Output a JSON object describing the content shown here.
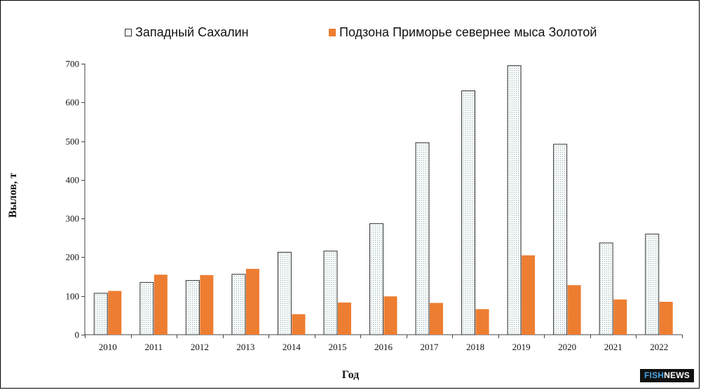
{
  "logo": {
    "part1": "FISH",
    "part2": "NEWS"
  },
  "chart_data": {
    "type": "bar",
    "title": "",
    "xlabel": "Год",
    "ylabel": "Вылов, т",
    "ylim": [
      0,
      700
    ],
    "yticks": [
      0,
      100,
      200,
      300,
      400,
      500,
      600,
      700
    ],
    "grid": false,
    "legend_position": "top",
    "categories": [
      "2010",
      "2011",
      "2012",
      "2013",
      "2014",
      "2015",
      "2016",
      "2017",
      "2018",
      "2019",
      "2020",
      "2021",
      "2022"
    ],
    "series": [
      {
        "name": "Западный Сахалин",
        "color": "#f4f8f8",
        "pattern": "dotted",
        "values": [
          107,
          135,
          140,
          156,
          213,
          216,
          287,
          496,
          630,
          695,
          492,
          237,
          260
        ]
      },
      {
        "name": "Подзона Приморье севернее мыса Золотой",
        "color": "#ed7d31",
        "pattern": "solid",
        "values": [
          113,
          155,
          154,
          170,
          53,
          83,
          99,
          82,
          66,
          205,
          128,
          91,
          85
        ]
      }
    ]
  }
}
